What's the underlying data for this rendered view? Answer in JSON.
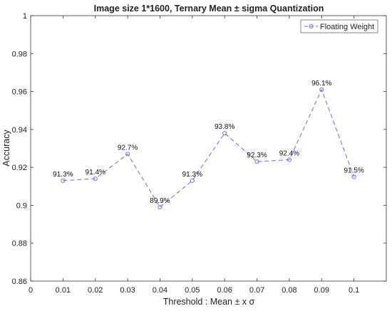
{
  "chart_data": {
    "type": "line",
    "title": "Image size 1*1600, Ternary Mean ± sigma Quantization",
    "xlabel": "Threshold : Mean ± x σ",
    "ylabel": "Accuracy",
    "xlim": [
      0,
      0.11
    ],
    "ylim": [
      0.86,
      1
    ],
    "x_ticks": [
      "0",
      "0.01",
      "0.02",
      "0.03",
      "0.04",
      "0.05",
      "0.06",
      "0.07",
      "0.08",
      "0.09",
      "0.1"
    ],
    "y_ticks": [
      "0.86",
      "0.88",
      "0.9",
      "0.92",
      "0.94",
      "0.96",
      "0.98",
      "1"
    ],
    "grid": false,
    "legend_position": "top-right",
    "series": [
      {
        "name": "Floating Weight",
        "color": "#7f5cff",
        "line_style": "dashed",
        "marker": "circle",
        "x": [
          0.01,
          0.02,
          0.03,
          0.04,
          0.05,
          0.06,
          0.07,
          0.08,
          0.09,
          0.1
        ],
        "y": [
          0.913,
          0.914,
          0.927,
          0.899,
          0.913,
          0.938,
          0.923,
          0.924,
          0.961,
          0.915
        ],
        "labels": [
          "91.3%",
          "91.4%",
          "92.7%",
          "89.9%",
          "91.3%",
          "93.8%",
          "92.3%",
          "92.4%",
          "96.1%",
          "91.5%"
        ]
      }
    ]
  }
}
